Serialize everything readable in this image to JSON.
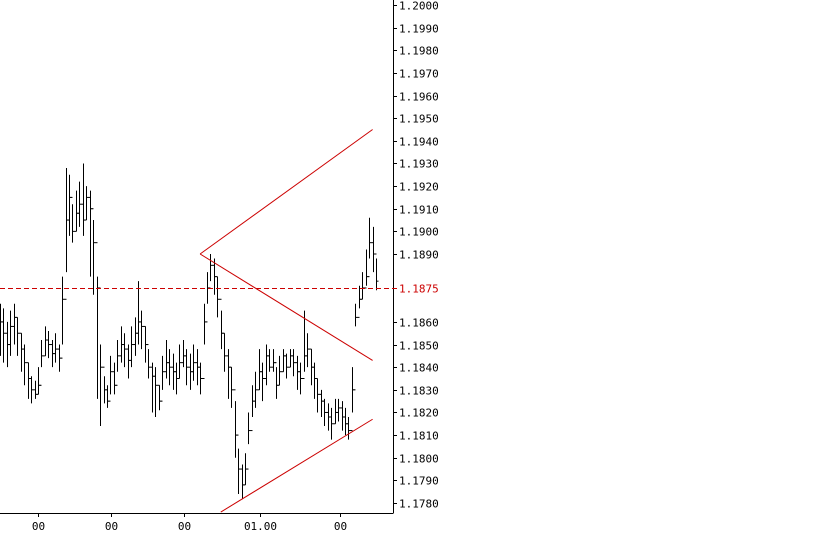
{
  "chart_data": {
    "type": "ohlc",
    "title": "",
    "xlabel": "",
    "ylabel": "",
    "ylim": [
      1.1776,
      1.2002
    ],
    "y_ticks": [
      "1.2000",
      "1.1990",
      "1.1980",
      "1.1970",
      "1.1960",
      "1.1950",
      "1.1940",
      "1.1930",
      "1.1920",
      "1.1910",
      "1.1900",
      "1.1890",
      "1.1860",
      "1.1850",
      "1.1840",
      "1.1830",
      "1.1820",
      "1.1810",
      "1.1800",
      "1.1790",
      "1.1780"
    ],
    "current_price": {
      "value": 1.1875,
      "label": "1.1875",
      "color": "#cc0000",
      "style": "dashed"
    },
    "x_tick_labels": [
      "00",
      "00",
      "00",
      "01.00",
      "00"
    ],
    "grid": false,
    "legend": "none",
    "colors": {
      "bars": "#000000",
      "trendlines": "#cc0000",
      "axis": "#000000",
      "background": "#ffffff"
    },
    "series": [
      {
        "name": "",
        "close": [
          1.186,
          1.1855,
          1.185,
          1.1858,
          1.1862,
          1.1855,
          1.1848,
          1.1842,
          1.1835,
          1.183,
          1.1828,
          1.1832,
          1.1845,
          1.1852,
          1.185,
          1.1846,
          1.1848,
          1.1844,
          1.187,
          1.1905,
          1.1915,
          1.19,
          1.1908,
          1.1912,
          1.1905,
          1.1915,
          1.191,
          1.1895,
          1.1875,
          1.184,
          1.183,
          1.1825,
          1.1838,
          1.1832,
          1.1845,
          1.185,
          1.1848,
          1.1843,
          1.185,
          1.1855,
          1.186,
          1.1858,
          1.185,
          1.184,
          1.1836,
          1.1832,
          1.1825,
          1.1838,
          1.1842,
          1.184,
          1.1838,
          1.1835,
          1.1842,
          1.1845,
          1.184,
          1.1838,
          1.1842,
          1.184,
          1.1835,
          1.186,
          1.1875,
          1.1885,
          1.188,
          1.187,
          1.1855,
          1.1845,
          1.184,
          1.183,
          1.181,
          1.1795,
          1.1788,
          1.1795,
          1.1812,
          1.1825,
          1.183,
          1.1838,
          1.1835,
          1.1845,
          1.184,
          1.1842,
          1.1832,
          1.1838,
          1.1845,
          1.184,
          1.1845,
          1.1842,
          1.1838,
          1.1835,
          1.1845,
          1.1848,
          1.184,
          1.1835,
          1.1828,
          1.1825,
          1.182,
          1.1818,
          1.1815,
          1.182,
          1.1822,
          1.1818,
          1.1815,
          1.1812,
          1.183,
          1.1862,
          1.187,
          1.1875,
          1.188,
          1.1895,
          1.189,
          1.1878
        ],
        "high": [
          1.1868,
          1.1866,
          1.186,
          1.1865,
          1.1868,
          1.1862,
          1.1855,
          1.185,
          1.1842,
          1.1836,
          1.1834,
          1.184,
          1.1852,
          1.1858,
          1.1856,
          1.1852,
          1.1855,
          1.185,
          1.188,
          1.1928,
          1.1925,
          1.1912,
          1.1918,
          1.1922,
          1.193,
          1.192,
          1.1918,
          1.1905,
          1.188,
          1.185,
          1.1836,
          1.1832,
          1.1845,
          1.1842,
          1.1852,
          1.1858,
          1.1855,
          1.185,
          1.1858,
          1.1862,
          1.1878,
          1.1865,
          1.1858,
          1.1848,
          1.1842,
          1.184,
          1.1832,
          1.1845,
          1.1852,
          1.1848,
          1.1846,
          1.1842,
          1.185,
          1.1852,
          1.1848,
          1.1846,
          1.185,
          1.1848,
          1.1842,
          1.1868,
          1.1882,
          1.189,
          1.1888,
          1.188,
          1.1865,
          1.1855,
          1.1848,
          1.184,
          1.1825,
          1.1804,
          1.1797,
          1.1802,
          1.182,
          1.1832,
          1.1838,
          1.1848,
          1.1842,
          1.185,
          1.1848,
          1.1848,
          1.184,
          1.1845,
          1.1848,
          1.1846,
          1.1848,
          1.1848,
          1.1845,
          1.1842,
          1.1865,
          1.1855,
          1.1848,
          1.1842,
          1.1835,
          1.183,
          1.1826,
          1.1824,
          1.1822,
          1.1826,
          1.1826,
          1.1825,
          1.1822,
          1.1818,
          1.184,
          1.1868,
          1.1876,
          1.1882,
          1.1892,
          1.1906,
          1.1902,
          1.1888
        ],
        "low": [
          1.1845,
          1.1842,
          1.184,
          1.1845,
          1.185,
          1.1845,
          1.1838,
          1.1832,
          1.1826,
          1.1824,
          1.1826,
          1.1828,
          1.184,
          1.1845,
          1.1844,
          1.184,
          1.1842,
          1.1838,
          1.185,
          1.1882,
          1.1898,
          1.1895,
          1.19,
          1.1902,
          1.1898,
          1.1905,
          1.188,
          1.1872,
          1.1826,
          1.1814,
          1.1824,
          1.1822,
          1.1828,
          1.1828,
          1.1838,
          1.1842,
          1.184,
          1.1835,
          1.184,
          1.1845,
          1.185,
          1.1848,
          1.1842,
          1.1835,
          1.182,
          1.1818,
          1.1821,
          1.183,
          1.1835,
          1.1832,
          1.183,
          1.1828,
          1.1835,
          1.184,
          1.1832,
          1.183,
          1.1834,
          1.1832,
          1.1828,
          1.185,
          1.1868,
          1.1878,
          1.1872,
          1.1862,
          1.1848,
          1.1838,
          1.1826,
          1.1822,
          1.18,
          1.1784,
          1.1782,
          1.1788,
          1.1806,
          1.1818,
          1.1822,
          1.183,
          1.1825,
          1.1832,
          1.1838,
          1.1838,
          1.1826,
          1.1832,
          1.1838,
          1.1835,
          1.184,
          1.1836,
          1.183,
          1.1828,
          1.1838,
          1.184,
          1.1832,
          1.1826,
          1.182,
          1.1818,
          1.1814,
          1.1812,
          1.1808,
          1.1815,
          1.1816,
          1.1812,
          1.181,
          1.1808,
          1.182,
          1.1858,
          1.1866,
          1.187,
          1.1876,
          1.1888,
          1.1882,
          1.1874
        ]
      }
    ],
    "trendlines": [
      {
        "name": "",
        "from": {
          "bar": 58,
          "price": 1.189
        },
        "to": {
          "bar": 108,
          "price": 1.1945
        }
      },
      {
        "name": "",
        "from": {
          "bar": 58,
          "price": 1.189
        },
        "to": {
          "bar": 108,
          "price": 1.1843
        }
      },
      {
        "name": "",
        "from": {
          "bar": 64,
          "price": 1.1776
        },
        "to": {
          "bar": 108,
          "price": 1.1817
        }
      }
    ]
  }
}
